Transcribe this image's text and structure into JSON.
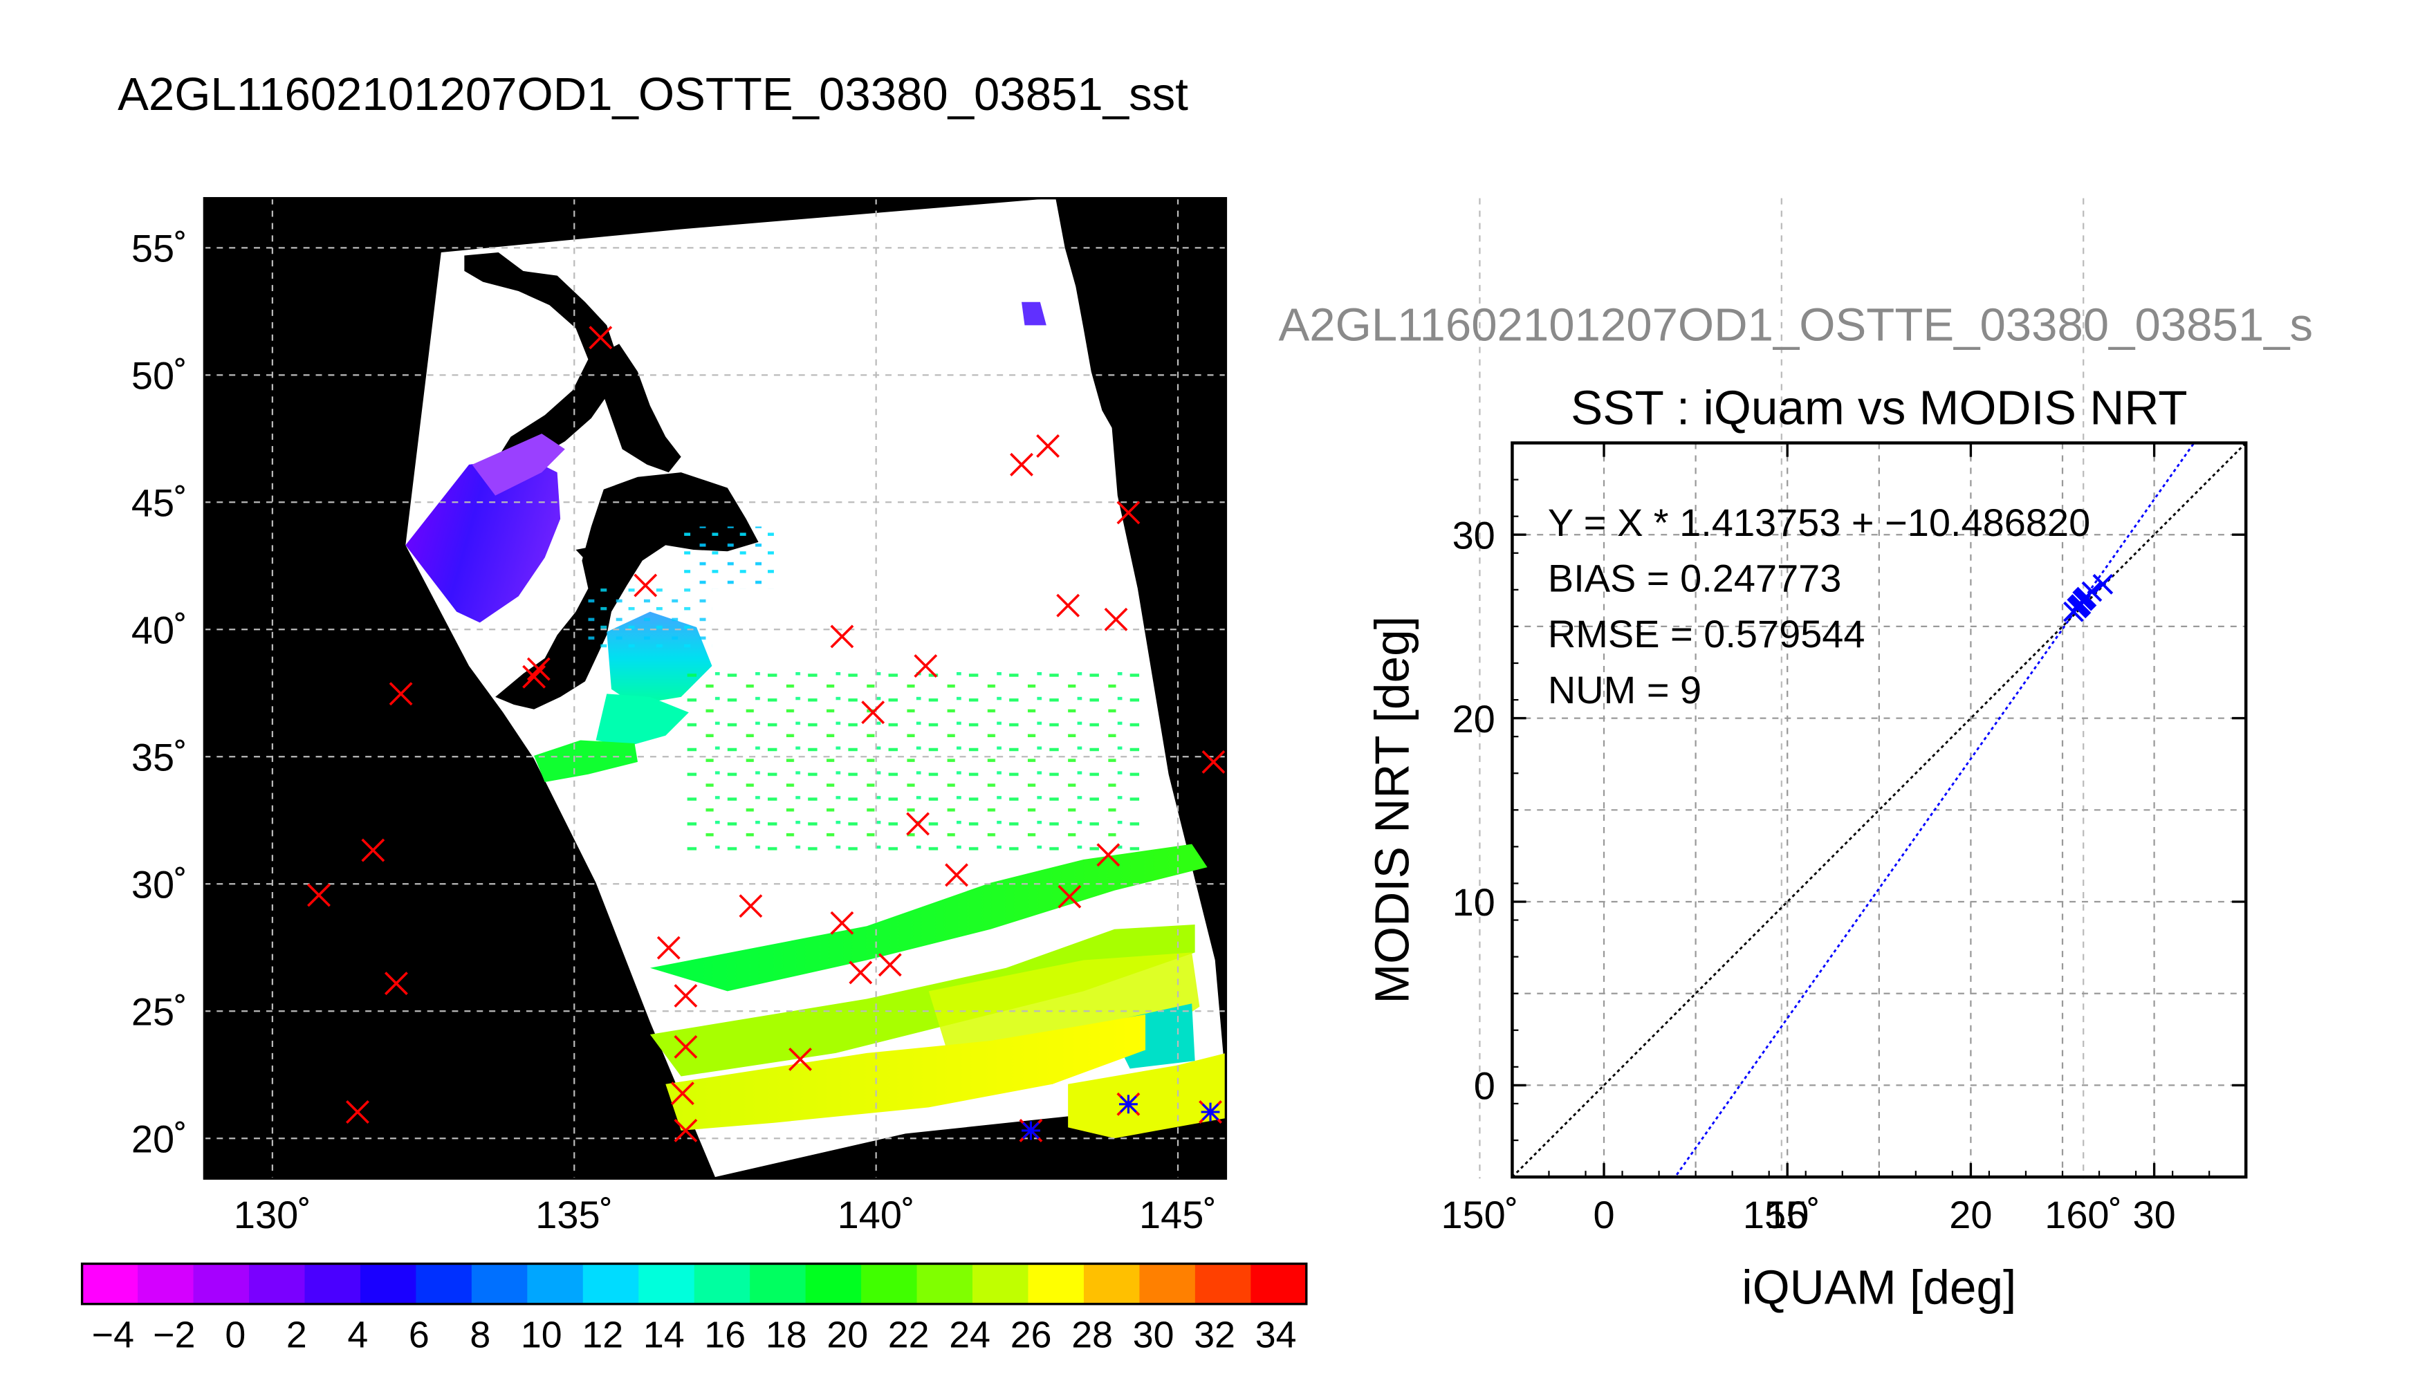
{
  "map_panel": {
    "title": "A2GL11602101207OD1_OSTTE_03380_03851_sst",
    "lat_ticks": [
      "55˚",
      "50˚",
      "45˚",
      "40˚",
      "35˚",
      "30˚",
      "25˚",
      "20˚"
    ],
    "lon_ticks": [
      "130˚",
      "135˚",
      "140˚",
      "145˚",
      "150˚",
      "155˚",
      "160˚"
    ],
    "colorbar": {
      "labels": [
        "−4",
        "−2",
        "0",
        "2",
        "4",
        "6",
        "8",
        "10",
        "12",
        "14",
        "16",
        "18",
        "20",
        "22",
        "24",
        "26",
        "28",
        "30",
        "32",
        "34"
      ],
      "colors": [
        "#ff00ff",
        "#d400ff",
        "#a600ff",
        "#7a00ff",
        "#4a00ff",
        "#1a00ff",
        "#0030ff",
        "#0070ff",
        "#00a6ff",
        "#00dcff",
        "#00ffdc",
        "#00ffa0",
        "#00ff60",
        "#00ff20",
        "#40ff00",
        "#80ff00",
        "#c0ff00",
        "#ffff00",
        "#ffc000",
        "#ff8000",
        "#ff4000",
        "#ff0000"
      ]
    },
    "colors": {
      "background": "#000000",
      "marker_red": "#ff0000",
      "marker_blue": "#0000ff",
      "grid": "#bbbbbb"
    }
  },
  "scatter_panel": {
    "file_title": "A2GL11602101207OD1_OSTTE_03380_03851_s",
    "stats": [
      "Y = X * 1.413753 + −10.486820",
      "BIAS = 0.247773",
      "RMSE = 0.579544",
      "NUM = 9"
    ]
  },
  "chart_data": {
    "type": "scatter",
    "title": "SST : iQuam vs MODIS NRT",
    "xlabel": "iQUAM [deg]",
    "ylabel": "MODIS NRT [deg]",
    "xlim": [
      -5,
      35
    ],
    "ylim": [
      -5,
      35
    ],
    "x_ticks": [
      0,
      10,
      20,
      30
    ],
    "y_ticks": [
      0,
      10,
      20,
      30
    ],
    "grid": true,
    "series": [
      {
        "marker": "x",
        "color": "#0000ff",
        "x": [
          25.6,
          25.8,
          26.0,
          26.1,
          26.3,
          25.9,
          26.2,
          26.6,
          27.2
        ],
        "y": [
          25.8,
          26.0,
          26.2,
          26.4,
          26.6,
          26.1,
          26.5,
          26.9,
          27.3
        ]
      }
    ],
    "lines": [
      {
        "name": "Y = X",
        "slope": 1.0,
        "intercept": 0.0,
        "style": "dotted",
        "color": "#000000"
      },
      {
        "name": "regression",
        "slope": 1.413753,
        "intercept": -10.48682,
        "style": "dotted",
        "color": "#0000ff"
      }
    ]
  }
}
